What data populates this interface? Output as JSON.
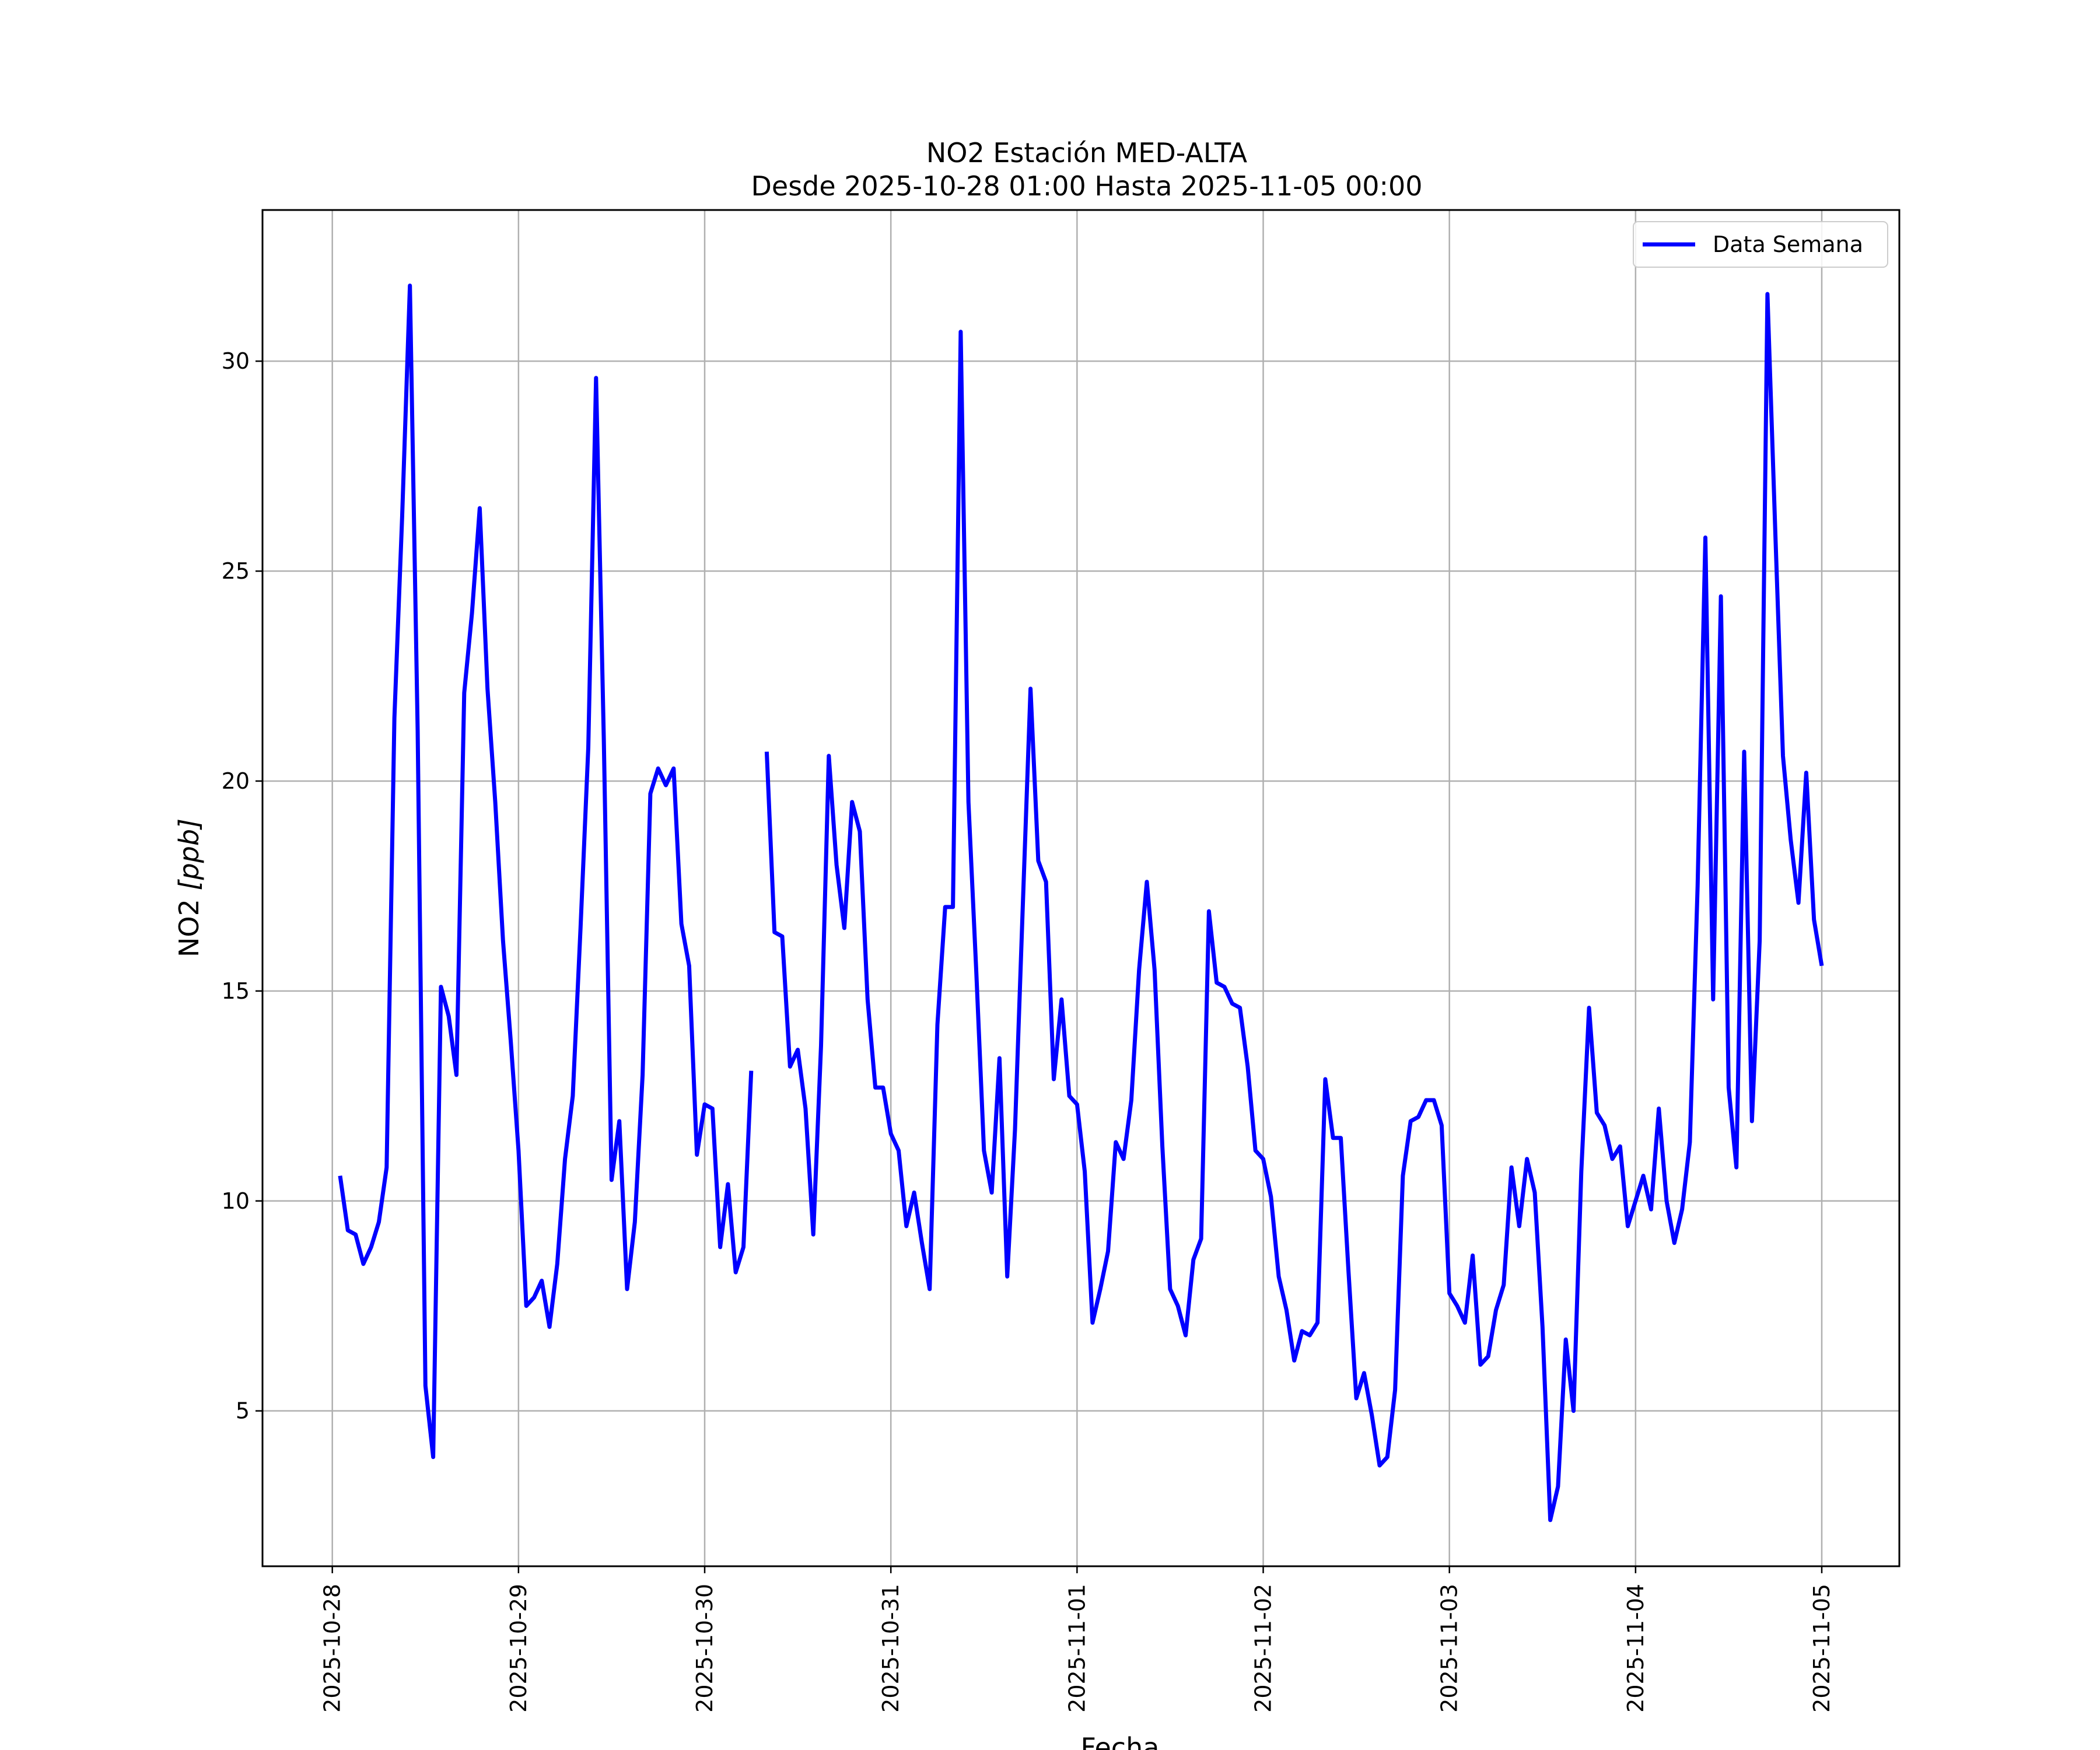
{
  "chart_data": {
    "type": "line",
    "title": "NO2 Estación MED-ALTA",
    "subtitle": "Desde 2025-10-28 01:00 Hasta 2025-11-05 00:00",
    "xlabel": "Fecha",
    "ylabel": "NO2 [ppb]",
    "ylabel_main": "NO2 ",
    "ylabel_unit": "[ppb]",
    "xlim": [
      "2025-10-27 15:00",
      "2025-11-05 10:00"
    ],
    "ylim": [
      1.3,
      33.6
    ],
    "grid": true,
    "legend_position": "upper right",
    "x_ticks": [
      "2025-10-28",
      "2025-10-29",
      "2025-10-30",
      "2025-10-31",
      "2025-11-01",
      "2025-11-02",
      "2025-11-03",
      "2025-11-04",
      "2025-11-05"
    ],
    "y_ticks": [
      5,
      10,
      15,
      20,
      25,
      30
    ],
    "series": [
      {
        "name": "Data Semana",
        "color": "#0000ff",
        "points": [
          [
            "2025-10-28 01:00",
            10.6
          ],
          [
            "2025-10-28 02:00",
            9.3
          ],
          [
            "2025-10-28 03:00",
            9.2
          ],
          [
            "2025-10-28 04:00",
            8.5
          ],
          [
            "2025-10-28 05:00",
            8.9
          ],
          [
            "2025-10-28 06:00",
            9.5
          ],
          [
            "2025-10-28 07:00",
            10.8
          ],
          [
            "2025-10-28 08:00",
            21.5
          ],
          [
            "2025-10-28 09:00",
            26.3
          ],
          [
            "2025-10-28 10:00",
            31.8
          ],
          [
            "2025-10-28 11:00",
            21.2
          ],
          [
            "2025-10-28 12:00",
            5.6
          ],
          [
            "2025-10-28 13:00",
            3.9
          ],
          [
            "2025-10-28 14:00",
            15.1
          ],
          [
            "2025-10-28 15:00",
            14.4
          ],
          [
            "2025-10-28 16:00",
            13.0
          ],
          [
            "2025-10-28 17:00",
            22.1
          ],
          [
            "2025-10-28 18:00",
            24.0
          ],
          [
            "2025-10-28 19:00",
            26.5
          ],
          [
            "2025-10-28 20:00",
            22.2
          ],
          [
            "2025-10-28 21:00",
            19.5
          ],
          [
            "2025-10-28 22:00",
            16.2
          ],
          [
            "2025-10-28 23:00",
            13.8
          ],
          [
            "2025-10-29 00:00",
            11.2
          ],
          [
            "2025-10-29 01:00",
            7.5
          ],
          [
            "2025-10-29 02:00",
            7.7
          ],
          [
            "2025-10-29 03:00",
            8.1
          ],
          [
            "2025-10-29 04:00",
            7.0
          ],
          [
            "2025-10-29 05:00",
            8.5
          ],
          [
            "2025-10-29 06:00",
            11.0
          ],
          [
            "2025-10-29 07:00",
            12.5
          ],
          [
            "2025-10-29 08:00",
            16.5
          ],
          [
            "2025-10-29 09:00",
            20.8
          ],
          [
            "2025-10-29 10:00",
            29.6
          ],
          [
            "2025-10-29 11:00",
            21.0
          ],
          [
            "2025-10-29 12:00",
            10.5
          ],
          [
            "2025-10-29 13:00",
            11.9
          ],
          [
            "2025-10-29 14:00",
            7.9
          ],
          [
            "2025-10-29 15:00",
            9.5
          ],
          [
            "2025-10-29 16:00",
            13.0
          ],
          [
            "2025-10-29 17:00",
            19.7
          ],
          [
            "2025-10-29 18:00",
            20.3
          ],
          [
            "2025-10-29 19:00",
            19.9
          ],
          [
            "2025-10-29 20:00",
            20.3
          ],
          [
            "2025-10-29 21:00",
            16.6
          ],
          [
            "2025-10-29 22:00",
            15.6
          ],
          [
            "2025-10-29 23:00",
            11.1
          ],
          [
            "2025-10-30 00:00",
            12.3
          ],
          [
            "2025-10-30 01:00",
            12.2
          ],
          [
            "2025-10-30 02:00",
            8.9
          ],
          [
            "2025-10-30 03:00",
            10.4
          ],
          [
            "2025-10-30 04:00",
            8.3
          ],
          [
            "2025-10-30 05:00",
            8.9
          ],
          [
            "2025-10-30 06:00",
            13.1
          ],
          [
            "2025-10-30 07:00",
            null
          ],
          [
            "2025-10-30 08:00",
            20.7
          ],
          [
            "2025-10-30 09:00",
            16.4
          ],
          [
            "2025-10-30 10:00",
            16.3
          ],
          [
            "2025-10-30 11:00",
            13.2
          ],
          [
            "2025-10-30 12:00",
            13.6
          ],
          [
            "2025-10-30 13:00",
            12.2
          ],
          [
            "2025-10-30 14:00",
            9.2
          ],
          [
            "2025-10-30 15:00",
            13.7
          ],
          [
            "2025-10-30 16:00",
            20.6
          ],
          [
            "2025-10-30 17:00",
            18.0
          ],
          [
            "2025-10-30 18:00",
            16.5
          ],
          [
            "2025-10-30 19:00",
            19.5
          ],
          [
            "2025-10-30 20:00",
            18.8
          ],
          [
            "2025-10-30 21:00",
            14.8
          ],
          [
            "2025-10-30 22:00",
            12.7
          ],
          [
            "2025-10-30 23:00",
            12.7
          ],
          [
            "2025-10-31 00:00",
            11.6
          ],
          [
            "2025-10-31 01:00",
            11.2
          ],
          [
            "2025-10-31 02:00",
            9.4
          ],
          [
            "2025-10-31 03:00",
            10.2
          ],
          [
            "2025-10-31 04:00",
            9.0
          ],
          [
            "2025-10-31 05:00",
            7.9
          ],
          [
            "2025-10-31 06:00",
            14.2
          ],
          [
            "2025-10-31 07:00",
            17.0
          ],
          [
            "2025-10-31 08:00",
            17.0
          ],
          [
            "2025-10-31 09:00",
            30.7
          ],
          [
            "2025-10-31 10:00",
            19.5
          ],
          [
            "2025-10-31 11:00",
            15.5
          ],
          [
            "2025-10-31 12:00",
            11.2
          ],
          [
            "2025-10-31 13:00",
            10.2
          ],
          [
            "2025-10-31 14:00",
            13.4
          ],
          [
            "2025-10-31 15:00",
            8.2
          ],
          [
            "2025-10-31 16:00",
            11.7
          ],
          [
            "2025-10-31 17:00",
            17.0
          ],
          [
            "2025-10-31 18:00",
            22.2
          ],
          [
            "2025-10-31 19:00",
            18.1
          ],
          [
            "2025-10-31 20:00",
            17.6
          ],
          [
            "2025-10-31 21:00",
            12.9
          ],
          [
            "2025-10-31 22:00",
            14.8
          ],
          [
            "2025-10-31 23:00",
            12.5
          ],
          [
            "2025-11-01 00:00",
            12.3
          ],
          [
            "2025-11-01 01:00",
            10.7
          ],
          [
            "2025-11-01 02:00",
            7.1
          ],
          [
            "2025-11-01 03:00",
            7.9
          ],
          [
            "2025-11-01 04:00",
            8.8
          ],
          [
            "2025-11-01 05:00",
            11.4
          ],
          [
            "2025-11-01 06:00",
            11.0
          ],
          [
            "2025-11-01 07:00",
            12.4
          ],
          [
            "2025-11-01 08:00",
            15.5
          ],
          [
            "2025-11-01 09:00",
            17.6
          ],
          [
            "2025-11-01 10:00",
            15.5
          ],
          [
            "2025-11-01 11:00",
            11.3
          ],
          [
            "2025-11-01 12:00",
            7.9
          ],
          [
            "2025-11-01 13:00",
            7.5
          ],
          [
            "2025-11-01 14:00",
            6.8
          ],
          [
            "2025-11-01 15:00",
            8.6
          ],
          [
            "2025-11-01 16:00",
            9.1
          ],
          [
            "2025-11-01 17:00",
            16.9
          ],
          [
            "2025-11-01 18:00",
            15.2
          ],
          [
            "2025-11-01 19:00",
            15.1
          ],
          [
            "2025-11-01 20:00",
            14.7
          ],
          [
            "2025-11-01 21:00",
            14.6
          ],
          [
            "2025-11-01 22:00",
            13.2
          ],
          [
            "2025-11-01 23:00",
            11.2
          ],
          [
            "2025-11-02 00:00",
            11.0
          ],
          [
            "2025-11-02 01:00",
            10.1
          ],
          [
            "2025-11-02 02:00",
            8.2
          ],
          [
            "2025-11-02 03:00",
            7.4
          ],
          [
            "2025-11-02 04:00",
            6.2
          ],
          [
            "2025-11-02 05:00",
            6.9
          ],
          [
            "2025-11-02 06:00",
            6.8
          ],
          [
            "2025-11-02 07:00",
            7.1
          ],
          [
            "2025-11-02 08:00",
            12.9
          ],
          [
            "2025-11-02 09:00",
            11.5
          ],
          [
            "2025-11-02 10:00",
            11.5
          ],
          [
            "2025-11-02 11:00",
            8.3
          ],
          [
            "2025-11-02 12:00",
            5.3
          ],
          [
            "2025-11-02 13:00",
            5.9
          ],
          [
            "2025-11-02 14:00",
            4.9
          ],
          [
            "2025-11-02 15:00",
            3.7
          ],
          [
            "2025-11-02 16:00",
            3.9
          ],
          [
            "2025-11-02 17:00",
            5.5
          ],
          [
            "2025-11-02 18:00",
            10.6
          ],
          [
            "2025-11-02 19:00",
            11.9
          ],
          [
            "2025-11-02 20:00",
            12.0
          ],
          [
            "2025-11-02 21:00",
            12.4
          ],
          [
            "2025-11-02 22:00",
            12.4
          ],
          [
            "2025-11-02 23:00",
            11.8
          ],
          [
            "2025-11-03 00:00",
            7.8
          ],
          [
            "2025-11-03 01:00",
            7.5
          ],
          [
            "2025-11-03 02:00",
            7.1
          ],
          [
            "2025-11-03 03:00",
            8.7
          ],
          [
            "2025-11-03 04:00",
            6.1
          ],
          [
            "2025-11-03 05:00",
            6.3
          ],
          [
            "2025-11-03 06:00",
            7.4
          ],
          [
            "2025-11-03 07:00",
            8.0
          ],
          [
            "2025-11-03 08:00",
            10.8
          ],
          [
            "2025-11-03 09:00",
            9.4
          ],
          [
            "2025-11-03 10:00",
            11.0
          ],
          [
            "2025-11-03 11:00",
            10.2
          ],
          [
            "2025-11-03 12:00",
            7.0
          ],
          [
            "2025-11-03 13:00",
            2.4
          ],
          [
            "2025-11-03 14:00",
            3.2
          ],
          [
            "2025-11-03 15:00",
            6.7
          ],
          [
            "2025-11-03 16:00",
            5.0
          ],
          [
            "2025-11-03 17:00",
            10.7
          ],
          [
            "2025-11-03 18:00",
            14.6
          ],
          [
            "2025-11-03 19:00",
            12.1
          ],
          [
            "2025-11-03 20:00",
            11.8
          ],
          [
            "2025-11-03 21:00",
            11.0
          ],
          [
            "2025-11-03 22:00",
            11.3
          ],
          [
            "2025-11-03 23:00",
            9.4
          ],
          [
            "2025-11-04 00:00",
            10.0
          ],
          [
            "2025-11-04 01:00",
            10.6
          ],
          [
            "2025-11-04 02:00",
            9.8
          ],
          [
            "2025-11-04 03:00",
            12.2
          ],
          [
            "2025-11-04 04:00",
            10.0
          ],
          [
            "2025-11-04 05:00",
            9.0
          ],
          [
            "2025-11-04 06:00",
            9.8
          ],
          [
            "2025-11-04 07:00",
            11.4
          ],
          [
            "2025-11-04 08:00",
            17.5
          ],
          [
            "2025-11-04 09:00",
            25.8
          ],
          [
            "2025-11-04 10:00",
            14.8
          ],
          [
            "2025-11-04 11:00",
            24.4
          ],
          [
            "2025-11-04 12:00",
            12.7
          ],
          [
            "2025-11-04 13:00",
            10.8
          ],
          [
            "2025-11-04 14:00",
            20.7
          ],
          [
            "2025-11-04 15:00",
            11.9
          ],
          [
            "2025-11-04 16:00",
            16.2
          ],
          [
            "2025-11-04 17:00",
            31.6
          ],
          [
            "2025-11-04 18:00",
            26.0
          ],
          [
            "2025-11-04 19:00",
            20.6
          ],
          [
            "2025-11-04 20:00",
            18.6
          ],
          [
            "2025-11-04 21:00",
            17.1
          ],
          [
            "2025-11-04 22:00",
            20.2
          ],
          [
            "2025-11-04 23:00",
            16.7
          ],
          [
            "2025-11-05 00:00",
            15.6
          ]
        ]
      }
    ]
  }
}
